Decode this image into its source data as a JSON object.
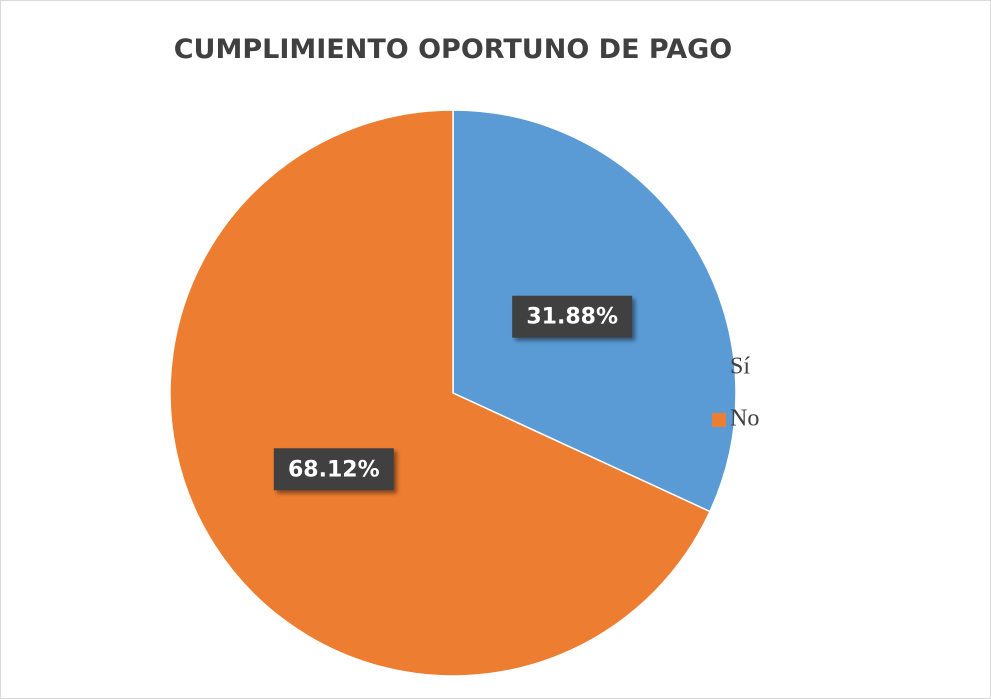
{
  "chart_data": {
    "type": "pie",
    "title": "CUMPLIMIENTO OPORTUNO DE PAGO",
    "categories": [
      "Sí",
      "No"
    ],
    "values": [
      31.88,
      68.12
    ],
    "value_labels": [
      "31.88%",
      "68.12%"
    ],
    "colors": [
      "#5b9bd5",
      "#ed7d31"
    ],
    "legend": "right"
  }
}
